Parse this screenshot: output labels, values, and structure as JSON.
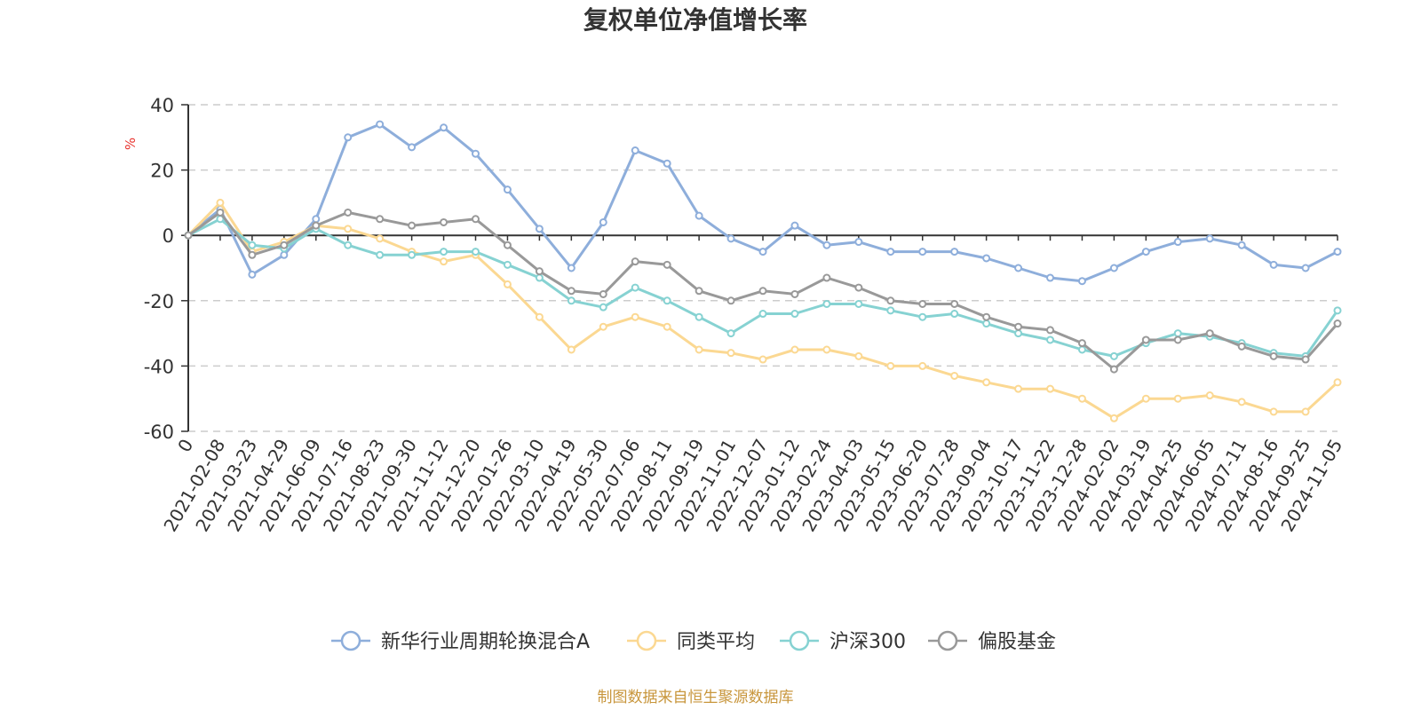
{
  "chart_data": {
    "type": "line",
    "title": "复权单位净值增长率",
    "ylabel": "%",
    "ylim": [
      -60,
      40
    ],
    "yticks": [
      40,
      20,
      0,
      -20,
      -40,
      -60
    ],
    "categories": [
      "0",
      "2021-02-08",
      "2021-03-23",
      "2021-04-29",
      "2021-06-09",
      "2021-07-16",
      "2021-08-23",
      "2021-09-30",
      "2021-11-12",
      "2021-12-20",
      "2022-01-26",
      "2022-03-10",
      "2022-04-19",
      "2022-05-30",
      "2022-07-06",
      "2022-08-11",
      "2022-09-19",
      "2022-11-01",
      "2022-12-07",
      "2023-01-12",
      "2023-02-24",
      "2023-04-03",
      "2023-05-15",
      "2023-06-20",
      "2023-07-28",
      "2023-09-04",
      "2023-10-17",
      "2023-11-22",
      "2023-12-28",
      "2024-02-02",
      "2024-03-19",
      "2024-04-25",
      "2024-06-05",
      "2024-07-11",
      "2024-08-16",
      "2024-09-25",
      "2024-11-05"
    ],
    "series": [
      {
        "name": "新华行业周期轮换混合A",
        "color": "#8eaedb",
        "values": [
          0,
          8,
          -12,
          -6,
          5,
          30,
          34,
          27,
          33,
          25,
          14,
          2,
          -10,
          4,
          26,
          22,
          6,
          -1,
          -5,
          3,
          -3,
          -2,
          -5,
          -5,
          -5,
          -7,
          -10,
          -13,
          -14,
          -10,
          -5,
          -2,
          -1,
          -3,
          -9,
          -10,
          -5
        ]
      },
      {
        "name": "同类平均",
        "color": "#fbd892",
        "values": [
          0,
          10,
          -5,
          -2,
          3,
          2,
          -1,
          -5,
          -8,
          -6,
          -15,
          -25,
          -35,
          -28,
          -25,
          -28,
          -35,
          -36,
          -38,
          -35,
          -35,
          -37,
          -40,
          -40,
          -43,
          -45,
          -47,
          -47,
          -50,
          -56,
          -50,
          -50,
          -49,
          -51,
          -54,
          -54,
          -45
        ]
      },
      {
        "name": "沪深300",
        "color": "#86d2d2",
        "values": [
          0,
          5,
          -3,
          -4,
          2,
          -3,
          -6,
          -6,
          -5,
          -5,
          -9,
          -13,
          -20,
          -22,
          -16,
          -20,
          -25,
          -30,
          -24,
          -24,
          -21,
          -21,
          -23,
          -25,
          -24,
          -27,
          -30,
          -32,
          -35,
          -37,
          -33,
          -30,
          -31,
          -33,
          -36,
          -37,
          -23
        ]
      },
      {
        "name": "偏股基金",
        "color": "#999999",
        "values": [
          0,
          7,
          -6,
          -3,
          3,
          7,
          5,
          3,
          4,
          5,
          -3,
          -11,
          -17,
          -18,
          -8,
          -9,
          -17,
          -20,
          -17,
          -18,
          -13,
          -16,
          -20,
          -21,
          -21,
          -25,
          -28,
          -29,
          -33,
          -41,
          -32,
          -32,
          -30,
          -34,
          -37,
          -38,
          -27
        ]
      }
    ],
    "legend_position": "bottom-center",
    "grid": true
  },
  "footer": {
    "source": "制图数据来自恒生聚源数据库"
  }
}
